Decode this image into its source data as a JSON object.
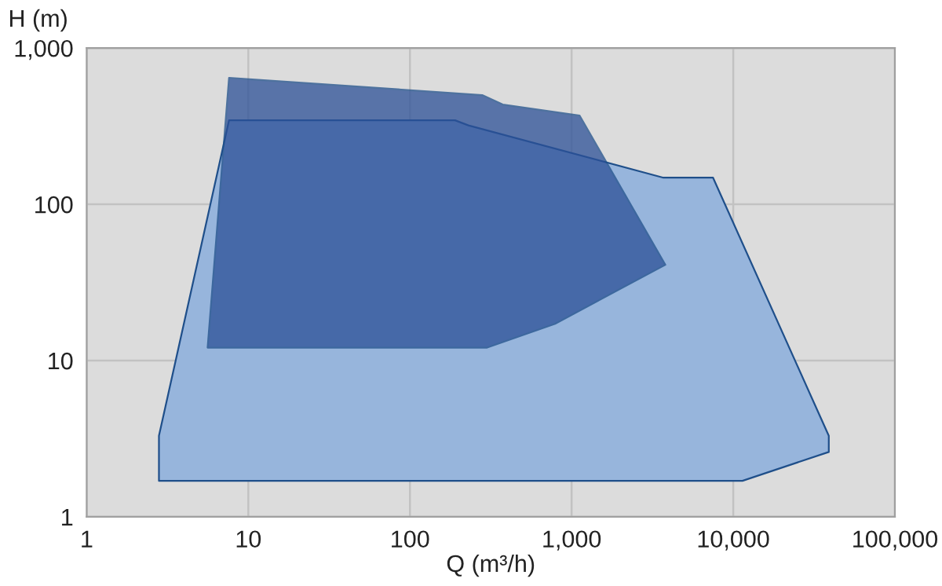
{
  "chart_data": {
    "type": "area",
    "xlabel": "Q (m³/h)",
    "ylabel": "H (m)",
    "log": "xy",
    "grid": true,
    "xlim": [
      1,
      100000
    ],
    "ylim": [
      1,
      1000
    ],
    "xticks": [
      1,
      10,
      100,
      {
        "value": 1000,
        "label": "1,000"
      },
      {
        "value": 10000,
        "label": "10,000"
      },
      {
        "value": 100000,
        "label": "100,000"
      }
    ],
    "yticks": [
      1,
      10,
      100,
      {
        "value": 1000,
        "label": "1,000"
      }
    ],
    "series": [
      {
        "color": "#97b5dc",
        "x": [
          2.8,
          2.8,
          7.6,
          190,
          230,
          3700,
          7500,
          39000,
          39000,
          11400
        ],
        "values": [
          1.7,
          3.3,
          345,
          345,
          320,
          148,
          148,
          3.3,
          2.6,
          1.7
        ]
      },
      {
        "color": "#2c5097",
        "x": [
          7.6,
          280,
          375,
          1120,
          3800,
          790,
          300,
          5.6
        ],
        "values": [
          645,
          500,
          435,
          370,
          41,
          17.2,
          12.1,
          12.1
        ]
      }
    ]
  }
}
